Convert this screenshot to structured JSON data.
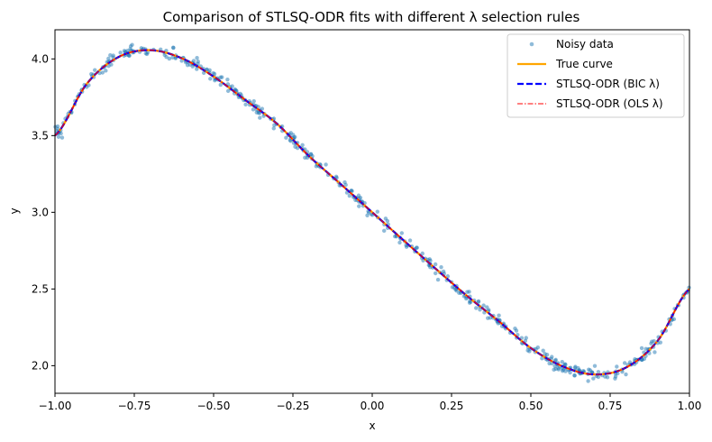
{
  "chart_data": {
    "type": "scatter",
    "title": "Comparison of STLSQ-ODR fits with different λ selection rules",
    "xlabel": "x",
    "ylabel": "y",
    "xlim": [
      -1.0,
      1.0
    ],
    "ylim": [
      1.82,
      4.19
    ],
    "xticks": [
      -1.0,
      -0.75,
      -0.5,
      -0.25,
      0.0,
      0.25,
      0.5,
      0.75,
      1.0
    ],
    "xtick_labels": [
      "−1.00",
      "−0.75",
      "−0.50",
      "−0.25",
      "0.00",
      "0.25",
      "0.50",
      "0.75",
      "1.00"
    ],
    "yticks": [
      2.0,
      2.5,
      3.0,
      3.5,
      4.0
    ],
    "ytick_labels": [
      "2.0",
      "2.5",
      "3.0",
      "3.5",
      "4.0"
    ],
    "grid": false,
    "legend_position": "top-right",
    "curve_points": {
      "x": [
        -1.0,
        -0.9,
        -0.8,
        -0.7,
        -0.6,
        -0.5,
        -0.4,
        -0.3,
        -0.2,
        -0.1,
        0.0,
        0.1,
        0.2,
        0.3,
        0.4,
        0.5,
        0.6,
        0.7,
        0.8,
        0.9,
        1.0
      ],
      "y": [
        3.5,
        3.837,
        4.012,
        4.057,
        4.004,
        3.885,
        3.732,
        3.577,
        3.368,
        3.185,
        3.0,
        2.815,
        2.632,
        2.453,
        2.288,
        2.115,
        1.996,
        1.943,
        1.988,
        2.163,
        2.5
      ]
    },
    "series": [
      {
        "name": "Noisy data",
        "style": "scatter",
        "color": "#1f77b4",
        "alpha": 0.5,
        "n_points": 500,
        "noise_sd": 0.02
      },
      {
        "name": "True curve",
        "style": "solid",
        "color": "#ffa500"
      },
      {
        "name": "STLSQ-ODR (BIC λ)",
        "style": "dashed",
        "color": "#0000ff"
      },
      {
        "name": "STLSQ-ODR (OLS λ)",
        "style": "dashdot",
        "color": "#ff0000"
      }
    ]
  }
}
